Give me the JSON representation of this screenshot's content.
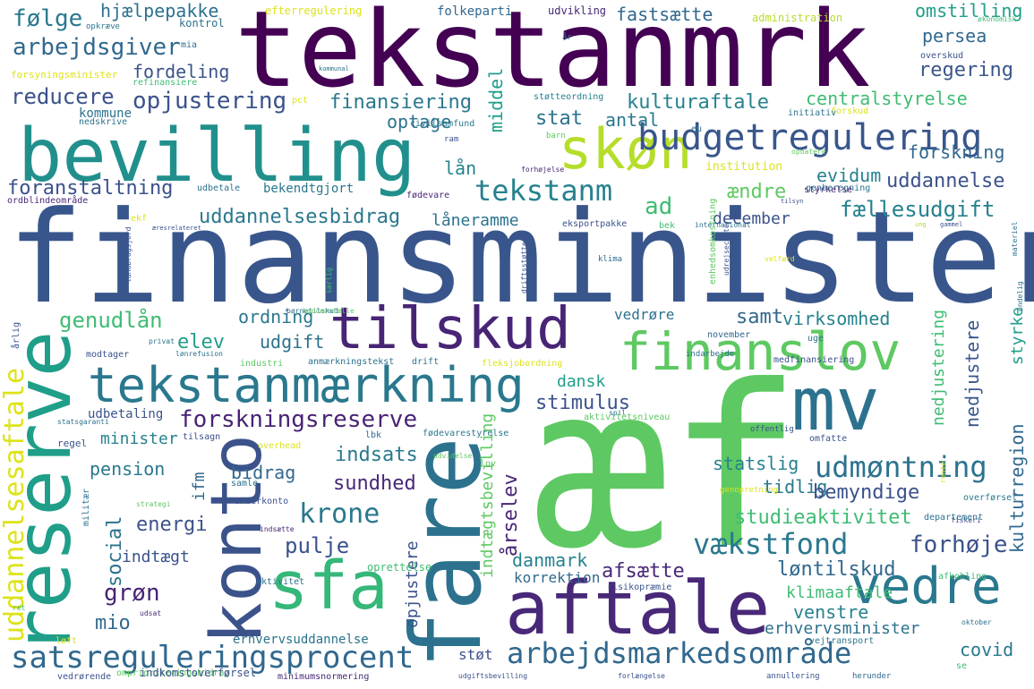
{
  "title": "Word cloud",
  "big": {
    "tekstanmrk": "tekstanmrk",
    "finansminister": "finansminister",
    "ae_f": "æf",
    "bevilling": "bevilling",
    "reserve": "reserve",
    "fare": "fare",
    "konto": "konto",
    "sfa": "sfa",
    "aftale": "aftale",
    "mv": "mv",
    "skon": "skøn",
    "tilskud": "tilskud",
    "finanslov": "finanslov",
    "tekstanmaerkning": "tekstanmærkning",
    "vedre": "vedre",
    "budgetregulering": "budgetregulering",
    "tekstanm": "tekstanm",
    "arbejdsmarkedsomraade": "arbejdsmarkedsområde",
    "satsreguleringsprocent": "satsreguleringsprocent",
    "forskningsreserve": "forskningsreserve",
    "udmontning": "udmøntning",
    "vaekstfond": "vækstfond",
    "krone": "krone",
    "uddannelsesaftale": "uddannelsesaftale"
  },
  "medium": {
    "folge": "følge",
    "hjaelpepakke": "hjælpepakke",
    "arbejdsgiver": "arbejdsgiver",
    "fordeling": "fordeling",
    "reducere": "reducere",
    "opjustering": "opjustering",
    "finansiering": "finansiering",
    "kulturaftale": "kulturaftale",
    "centralstyrelse": "centralstyrelse",
    "fastsaette": "fastsætte",
    "omstilling": "omstilling",
    "persea": "persea",
    "regering": "regering",
    "forskning": "forskning",
    "foranstaltning": "foranstaltning",
    "uddannelse": "uddannelse",
    "evidum": "evidum",
    "uddannelsesbidrag": "uddannelsesbidrag",
    "faellesudgift": "fællesudgift",
    "december": "december",
    "genudlaan": "genudlån",
    "ordning": "ordning",
    "samt": "samt",
    "virksomhed": "virksomhed",
    "elev": "elev",
    "udgift": "udgift",
    "stimulus": "stimulus",
    "dansk": "dansk",
    "nedjustere": "nedjustere",
    "nedjustering": "nedjustering",
    "styrke": "styrke",
    "minister": "minister",
    "pension": "pension",
    "indsats": "indsats",
    "sundhed": "sundhed",
    "statslig": "statslig",
    "tidlig": "tidlig",
    "bemyndige": "bemyndige",
    "bidrag": "bidrag",
    "energi": "energi",
    "pulje": "pulje",
    "studieaktivitet": "studieaktivitet",
    "forhoje": "forhøje",
    "lontilskud": "løntilskud",
    "gron": "grøn",
    "mio": "mio",
    "afsaette": "afsætte",
    "danmark": "danmark",
    "klimaaftale": "klimaaftale",
    "venstre": "venstre",
    "erhvervsminister": "erhvervsminister",
    "covid": "covid",
    "aarselev": "årselev",
    "kulturregion": "kulturregion",
    "indtaegtsbevilling": "indtægtsbevilling",
    "opjustere": "opjustere",
    "social": "social",
    "indtaegt": "indtægt",
    "ifm": "ifm",
    "middel": "middel",
    "stat": "stat",
    "antal": "antal",
    "optage": "optage",
    "laan": "lån",
    "ad": "ad",
    "aendre": "ændre",
    "laaneramme": "låneramme",
    "vedrore": "vedrøre",
    "udbetaling": "udbetaling",
    "korrektion": "korrektion",
    "stot": "støt",
    "erhvervsuddannelse": "erhvervsuddannelse",
    "kommune": "kommune",
    "bekendtgjort": "bekendtgjort"
  },
  "small": [
    "kontrol",
    "efterregulering",
    "folkeparti",
    "udvikling",
    "administration",
    "økonomisk",
    "opkræve",
    "mia",
    "år",
    "overskud",
    "forsyningsminister",
    "refinansiere",
    "kommunal",
    "pct",
    "støtteordning",
    "nedskrive",
    "civilsamfund",
    "initiativ",
    "forskud",
    "ram",
    "barn",
    "eu",
    "forhøjelse",
    "institution",
    "opdatere",
    "udbetale",
    "fødevare",
    "genberegning",
    "styrkelse",
    "ordblindeområde",
    "tilsyn",
    "ekf",
    "eksportpakke",
    "bek",
    "æresrelateret",
    "gammel",
    "ung",
    "materiel",
    "international",
    "landbrugsjord",
    "enhedsomkostning",
    "privat",
    "klima",
    "velfærd",
    "udrejsecenter",
    "endelig",
    "årlig",
    "særlig",
    "driftsstøtte",
    "børnetilskud",
    "koncernfælle",
    "november",
    "uge",
    "modtager",
    "lønrefusion",
    "industri",
    "anmærkningstekst",
    "drift",
    "fleksjobordning",
    "indarbejde",
    "medfinansiering",
    "statsgaranti",
    "spil",
    "aktivitetsniveau",
    "regel",
    "tilsagn",
    "lbk",
    "fødevarestyrelse",
    "offentlig",
    "omfatte",
    "overhead",
    "udvidelse",
    "lov",
    "samle",
    "rente",
    "genopretning",
    "overførsel",
    "militær",
    "underkonto",
    "strategi",
    "fiskeri",
    "indsætte",
    "departement",
    "aktivitet",
    "afkobling",
    "ret",
    "udsat",
    "oprettelse",
    "risikopræmie",
    "oktober",
    "løft",
    "vejtransport",
    "omprioriteringsbidrag",
    "indkomstoverførsel",
    "minimumsnormering",
    "udgiftsbevilling",
    "forlængelse",
    "annullering",
    "herunder",
    "se",
    "vedrørende"
  ]
}
